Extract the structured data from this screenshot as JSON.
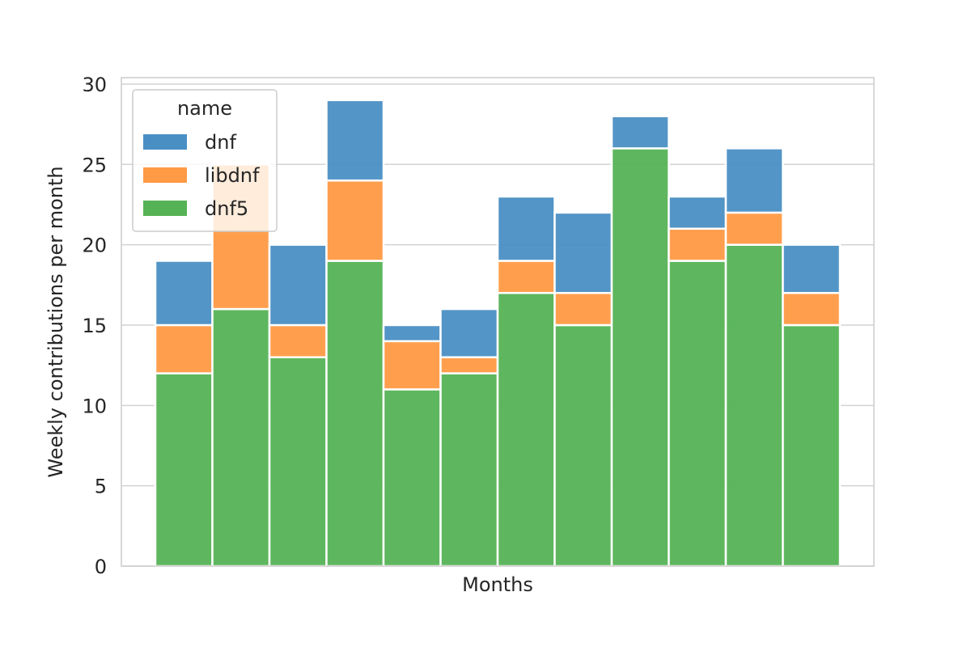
{
  "chart_data": {
    "type": "bar",
    "stacked": true,
    "title": "",
    "xlabel": "Months",
    "ylabel": "Weekly contributions per month",
    "ylim": [
      0,
      30
    ],
    "yticks": [
      0,
      5,
      10,
      15,
      20,
      25,
      30
    ],
    "grid": true,
    "legend": {
      "title": "name",
      "placement": "top-left"
    },
    "series": [
      {
        "name": "dnf5",
        "color": "#55b355",
        "values": [
          12,
          16,
          13,
          19,
          11,
          12,
          17,
          15,
          26,
          19,
          20,
          15
        ]
      },
      {
        "name": "libdnf",
        "color": "#ff9a45",
        "values": [
          3,
          9,
          2,
          5,
          3,
          1,
          2,
          2,
          0,
          2,
          2,
          2
        ]
      },
      {
        "name": "dnf",
        "color": "#4a8fc4",
        "values": [
          4,
          0,
          5,
          5,
          1,
          3,
          4,
          5,
          2,
          2,
          4,
          3
        ]
      }
    ],
    "legend_order": [
      "dnf",
      "libdnf",
      "dnf5"
    ]
  }
}
